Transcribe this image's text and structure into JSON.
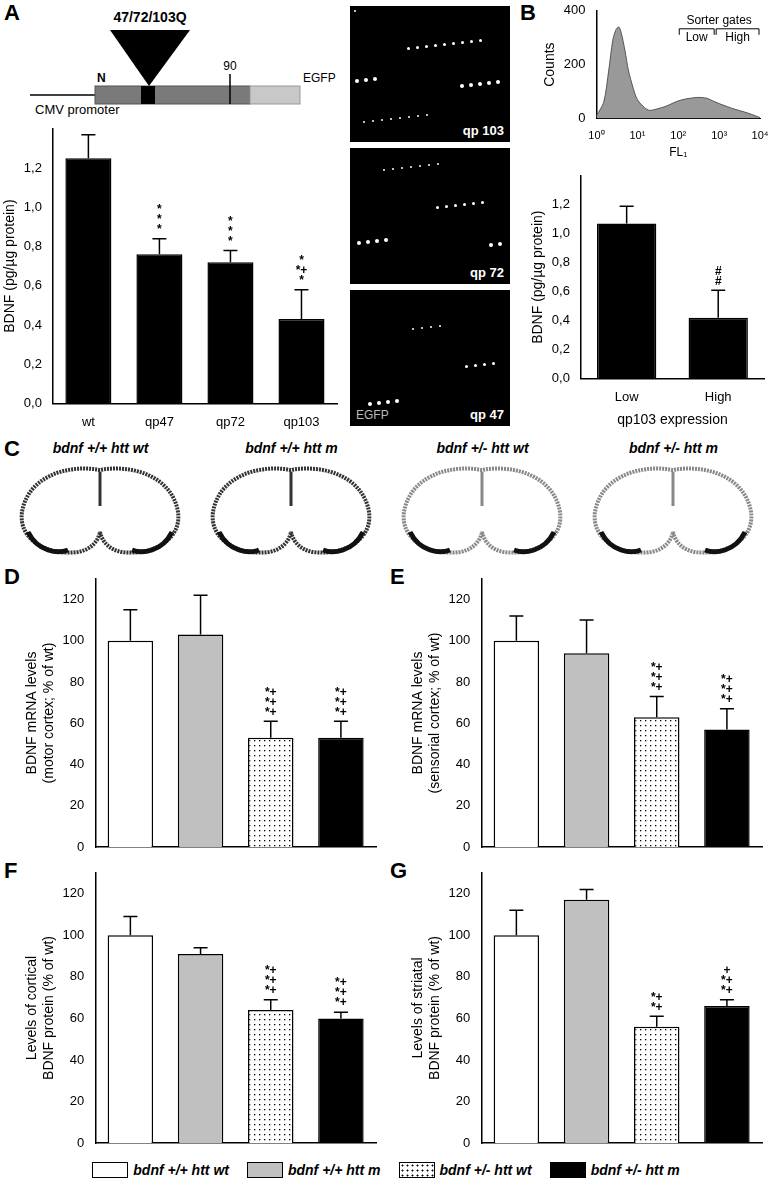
{
  "chart_data": [
    {
      "type": "bar",
      "panel": "A",
      "categories": [
        "wt",
        "qp47",
        "qp72",
        "qp103"
      ],
      "values": [
        1.25,
        0.76,
        0.72,
        0.43
      ],
      "errors": [
        0.12,
        0.08,
        0.06,
        0.15
      ],
      "color": "#000000",
      "y_label": "BDNF (pg/µg protein)",
      "ylim": [
        0,
        1.4
      ],
      "yticks": [
        {
          "value": 0,
          "label": "0,0"
        },
        {
          "value": 0.2,
          "label": "0,2"
        },
        {
          "value": 0.4,
          "label": "0,4"
        },
        {
          "value": 0.6,
          "label": "0,6"
        },
        {
          "value": 0.8,
          "label": "0,8"
        },
        {
          "value": 1.0,
          "label": "1,0"
        },
        {
          "value": 1.2,
          "label": "1,2"
        }
      ],
      "annotations": [
        {
          "category": "qp47",
          "lines": [
            "*",
            "*",
            "*"
          ]
        },
        {
          "category": "qp72",
          "lines": [
            "*",
            "*",
            "*"
          ]
        },
        {
          "category": "qp103",
          "lines": [
            "*",
            "*+",
            "*"
          ]
        }
      ],
      "grid": false
    },
    {
      "type": "area",
      "panel": "B",
      "x": [
        1,
        1.5,
        2,
        2.5,
        3,
        3.5,
        4,
        5,
        6,
        8,
        10,
        15,
        20,
        30,
        50,
        70,
        100,
        150,
        200,
        300,
        500,
        700,
        1000,
        1500,
        2000,
        3000,
        5000,
        7000,
        10000
      ],
      "values": [
        10,
        60,
        180,
        290,
        330,
        340,
        320,
        250,
        180,
        110,
        70,
        40,
        30,
        35,
        45,
        55,
        65,
        72,
        75,
        78,
        75,
        65,
        55,
        45,
        38,
        30,
        20,
        12,
        3
      ],
      "color": "#999999",
      "x_label": "FL₁",
      "y_label": "Counts",
      "log": "x",
      "xlim": [
        1,
        10000
      ],
      "xticks": [
        {
          "value": 1,
          "label": "10⁰"
        },
        {
          "value": 10,
          "label": "10¹"
        },
        {
          "value": 100,
          "label": "10²"
        },
        {
          "value": 1000,
          "label": "10³"
        },
        {
          "value": 10000,
          "label": "10⁴"
        }
      ],
      "ylim": [
        0,
        400
      ],
      "yticks": [
        0,
        200,
        400
      ],
      "gate_title": "Sorter gates",
      "gates": [
        {
          "label": "Low",
          "range": [
            100,
            800
          ]
        },
        {
          "label": "High",
          "range": [
            800,
            10000
          ]
        }
      ],
      "grid": false
    },
    {
      "type": "bar",
      "categories": [
        "Low",
        "High"
      ],
      "values": [
        1.07,
        0.42
      ],
      "errors": [
        0.12,
        0.19
      ],
      "color": "#000000",
      "x_label": "qp103 expression",
      "y_label": "BDNF (pg/µg protein)",
      "ylim": [
        0,
        1.4
      ],
      "yticks": [
        {
          "value": 0,
          "label": "0,0"
        },
        {
          "value": 0.2,
          "label": "0,2"
        },
        {
          "value": 0.4,
          "label": "0,4"
        },
        {
          "value": 0.6,
          "label": "0,6"
        },
        {
          "value": 0.8,
          "label": "0,8"
        },
        {
          "value": 1.0,
          "label": "1,0"
        },
        {
          "value": 1.2,
          "label": "1,2"
        }
      ],
      "annotations": [
        {
          "category": "High",
          "lines": [
            "#",
            "#"
          ]
        }
      ],
      "grid": false
    },
    {
      "type": "bar",
      "panel": "D",
      "categories": [
        "bdnf +/+ htt wt",
        "bdnf +/+ htt m",
        "bdnf +/- htt wt",
        "bdnf +/- htt m"
      ],
      "values": [
        100,
        103,
        53,
        53
      ],
      "errors": [
        15,
        19,
        8,
        8
      ],
      "colors": [
        "#ffffff",
        "#c0c0c0",
        "#ffffff",
        "#000000"
      ],
      "y_label": [
        "BDNF mRNA levels",
        "(motor cortex; % of wt)"
      ],
      "ylim": [
        0,
        130
      ],
      "yticks": [
        0,
        20,
        40,
        60,
        80,
        100,
        120
      ],
      "annotations": [
        {
          "category": "bdnf +/- htt wt",
          "lines": [
            "*+",
            "*+",
            "*+"
          ]
        },
        {
          "category": "bdnf +/- htt m",
          "lines": [
            "*+",
            "*+",
            "*+"
          ]
        }
      ],
      "tick_labels": "y",
      "legend": "bottom",
      "grid": false
    },
    {
      "type": "bar",
      "panel": "E",
      "categories": [
        "bdnf +/+ htt wt",
        "bdnf +/+ htt m",
        "bdnf +/- htt wt",
        "bdnf +/- htt m"
      ],
      "values": [
        100,
        94,
        63,
        57
      ],
      "errors": [
        12,
        16,
        10,
        10
      ],
      "colors": [
        "#ffffff",
        "#c0c0c0",
        "#ffffff",
        "#000000"
      ],
      "y_label": [
        "BDNF mRNA levels",
        "(sensorial cortex; % of wt)"
      ],
      "ylim": [
        0,
        130
      ],
      "yticks": [
        0,
        20,
        40,
        60,
        80,
        100,
        120
      ],
      "annotations": [
        {
          "category": "bdnf +/- htt wt",
          "lines": [
            "*+",
            "*+",
            "*+"
          ]
        },
        {
          "category": "bdnf +/- htt m",
          "lines": [
            "*+",
            "*+",
            "*+"
          ]
        }
      ],
      "tick_labels": "y",
      "grid": false
    },
    {
      "type": "bar",
      "panel": "F",
      "categories": [
        "bdnf +/+ htt wt",
        "bdnf +/+ htt m",
        "bdnf +/- htt wt",
        "bdnf +/- htt m"
      ],
      "values": [
        100,
        91,
        64,
        60
      ],
      "errors": [
        9,
        3,
        5,
        3
      ],
      "colors": [
        "#ffffff",
        "#c0c0c0",
        "#ffffff",
        "#000000"
      ],
      "y_label": [
        "Levels of cortical",
        "BDNF protein (% of wt)"
      ],
      "ylim": [
        0,
        130
      ],
      "yticks": [
        0,
        20,
        40,
        60,
        80,
        100,
        120
      ],
      "annotations": [
        {
          "category": "bdnf +/- htt wt",
          "lines": [
            "*+",
            "*+",
            "*+"
          ]
        },
        {
          "category": "bdnf +/- htt m",
          "lines": [
            "*+",
            "*+",
            "*+"
          ]
        }
      ],
      "tick_labels": "y",
      "grid": false
    },
    {
      "type": "bar",
      "panel": "G",
      "categories": [
        "bdnf +/+ htt wt",
        "bdnf +/+ htt m",
        "bdnf +/- htt wt",
        "bdnf +/- htt m"
      ],
      "values": [
        100,
        117,
        56,
        66
      ],
      "errors": [
        12,
        5,
        5,
        3
      ],
      "colors": [
        "#ffffff",
        "#c0c0c0",
        "#ffffff",
        "#000000"
      ],
      "y_label": [
        "Levels of striatal",
        "BDNF protein (% of wt)"
      ],
      "ylim": [
        0,
        130
      ],
      "yticks": [
        0,
        20,
        40,
        60,
        80,
        100,
        120
      ],
      "annotations": [
        {
          "category": "bdnf +/- htt wt",
          "lines": [
            "*+",
            "*+"
          ]
        },
        {
          "category": "bdnf +/- htt m",
          "lines": [
            "+",
            "*+",
            "*+"
          ]
        }
      ],
      "tick_labels": "y",
      "grid": false
    }
  ],
  "diagram": {
    "construct": {
      "insert": "47/72/103Q",
      "promoter": "CMV promoter",
      "n_label": "N",
      "end_label": "90",
      "tag": "EGFP"
    },
    "micrographs": [
      "qp 103",
      "qp 72",
      "qp 47"
    ],
    "micrograph_inset": "EGFP",
    "panel_c": {
      "panel": "C",
      "labels": [
        "bdnf +/+ htt wt",
        "bdnf +/+ htt m",
        "bdnf +/- htt wt",
        "bdnf +/- htt m"
      ]
    }
  }
}
